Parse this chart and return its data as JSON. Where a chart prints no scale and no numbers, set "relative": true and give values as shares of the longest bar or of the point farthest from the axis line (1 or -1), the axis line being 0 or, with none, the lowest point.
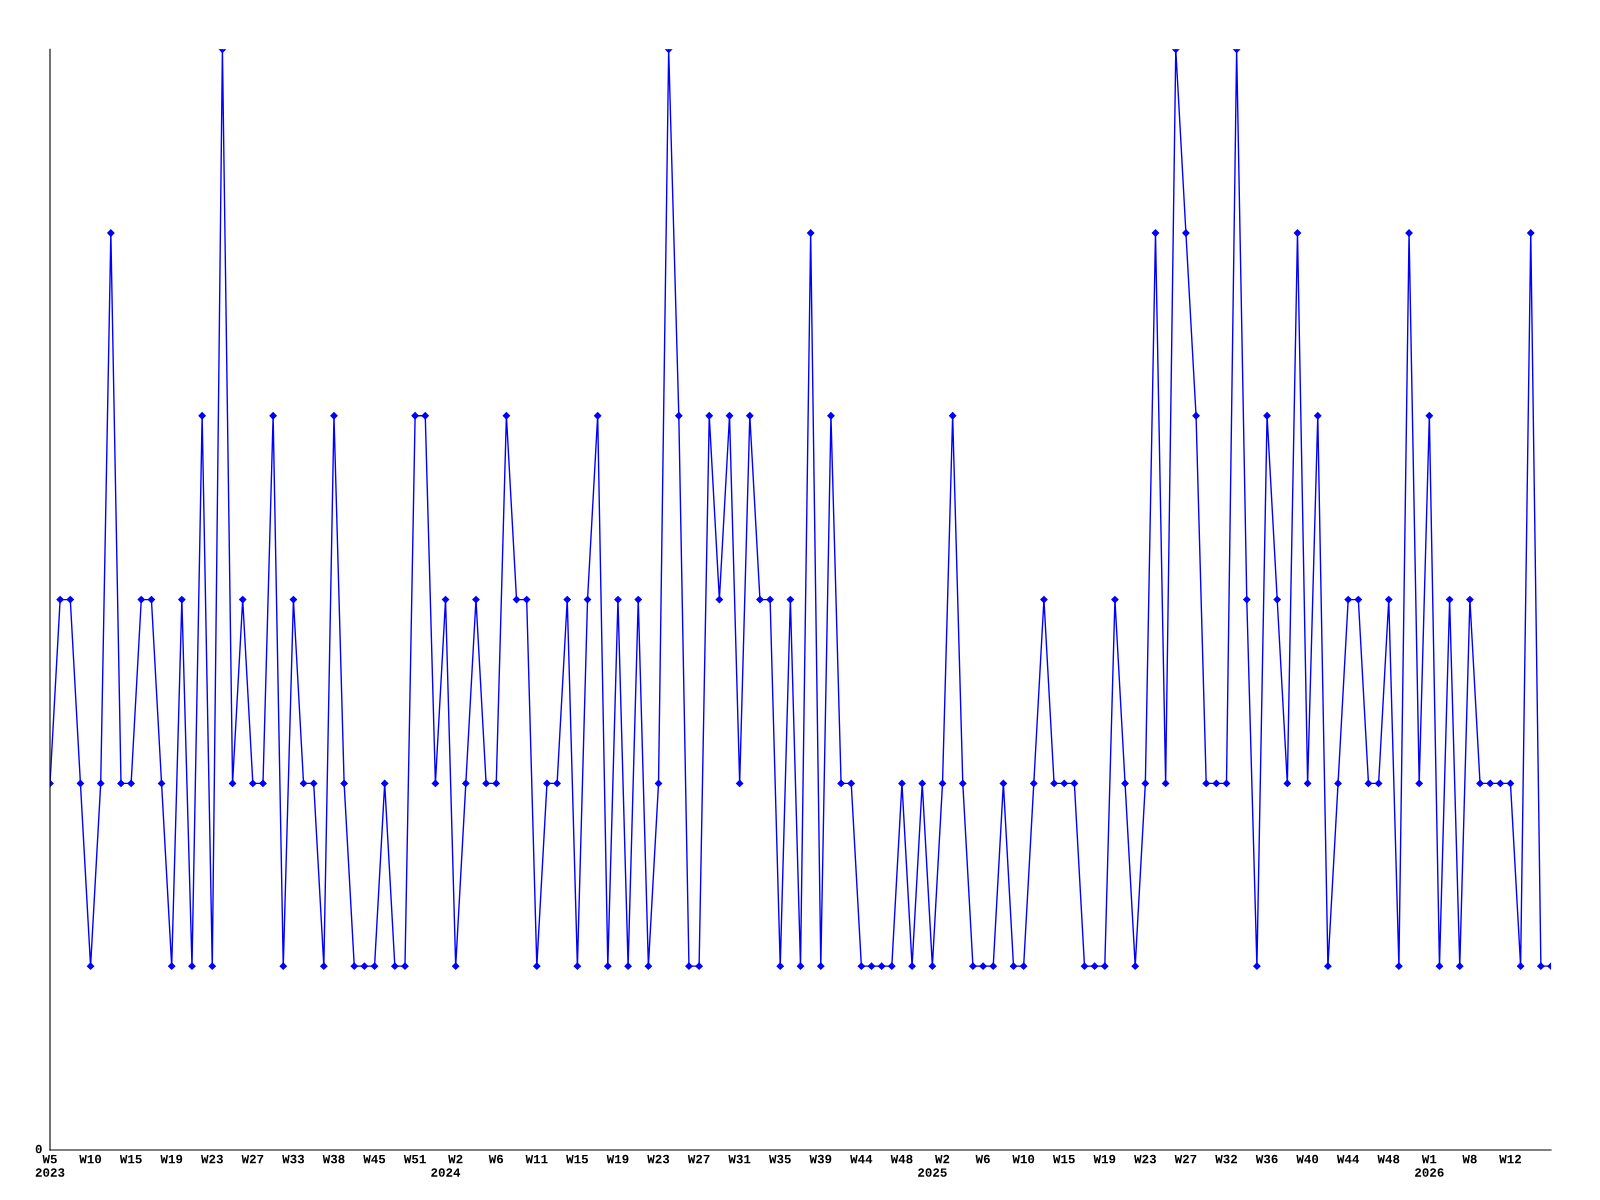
{
  "chart_data": {
    "type": "line",
    "relative": true,
    "marker": "diamond",
    "line_style": "solid",
    "grid": false,
    "legend": false,
    "categories": [
      "W5\n2023",
      null,
      null,
      null,
      "W10",
      null,
      null,
      null,
      "W15",
      null,
      null,
      null,
      "W19",
      null,
      null,
      null,
      "W23",
      null,
      null,
      null,
      "W27",
      null,
      null,
      null,
      "W33",
      null,
      null,
      null,
      "W38",
      null,
      null,
      null,
      "W45",
      null,
      null,
      null,
      "W51",
      null,
      null,
      "\n2024",
      "W2",
      null,
      null,
      null,
      "W6",
      null,
      null,
      null,
      "W11",
      null,
      null,
      null,
      "W15",
      null,
      null,
      null,
      "W19",
      null,
      null,
      null,
      "W23",
      null,
      null,
      null,
      "W27",
      null,
      null,
      null,
      "W31",
      null,
      null,
      null,
      "W35",
      null,
      null,
      null,
      "W39",
      null,
      null,
      null,
      "W44",
      null,
      null,
      null,
      "W48",
      null,
      null,
      "\n2025",
      "W2",
      null,
      null,
      null,
      "W6",
      null,
      null,
      null,
      "W10",
      null,
      null,
      null,
      "W15",
      null,
      null,
      null,
      "W19",
      null,
      null,
      null,
      "W23",
      null,
      null,
      null,
      "W27",
      null,
      null,
      null,
      "W32",
      null,
      null,
      null,
      "W36",
      null,
      null,
      null,
      "W40",
      null,
      null,
      null,
      "W44",
      null,
      null,
      null,
      "W48",
      null,
      null,
      null,
      "W1\n2026",
      null,
      null,
      null,
      "W8",
      null,
      null,
      null,
      "W12",
      null,
      null,
      null,
      null
    ],
    "series": [
      {
        "color": "#0000ff",
        "values": [
          0.333,
          0.5,
          0.5,
          0.333,
          0.167,
          0.333,
          0.833,
          0.333,
          0.333,
          0.5,
          0.5,
          0.333,
          0.167,
          0.5,
          0.167,
          0.667,
          0.167,
          1,
          0.333,
          0.5,
          0.333,
          0.333,
          0.667,
          0.167,
          0.5,
          0.333,
          0.333,
          0.167,
          0.667,
          0.333,
          0.167,
          0.167,
          0.167,
          0.333,
          0.167,
          0.167,
          0.667,
          0.667,
          0.333,
          0.5,
          0.167,
          0.333,
          0.5,
          0.333,
          0.333,
          0.667,
          0.5,
          0.5,
          0.167,
          0.333,
          0.333,
          0.5,
          0.167,
          0.5,
          0.667,
          0.167,
          0.5,
          0.167,
          0.5,
          0.167,
          0.333,
          1,
          0.667,
          0.167,
          0.167,
          0.667,
          0.5,
          0.667,
          0.333,
          0.667,
          0.5,
          0.5,
          0.167,
          0.5,
          0.167,
          0.833,
          0.167,
          0.667,
          0.333,
          0.333,
          0.167,
          0.167,
          0.167,
          0.167,
          0.333,
          0.167,
          0.333,
          0.167,
          0.333,
          0.667,
          0.333,
          0.167,
          0.167,
          0.167,
          0.333,
          0.167,
          0.167,
          0.333,
          0.5,
          0.333,
          0.333,
          0.333,
          0.167,
          0.167,
          0.167,
          0.5,
          0.333,
          0.167,
          0.333,
          0.833,
          0.333,
          1,
          0.833,
          0.667,
          0.333,
          0.333,
          0.333,
          1,
          0.5,
          0.167,
          0.667,
          0.5,
          0.333,
          0.833,
          0.333,
          0.667,
          0.167,
          0.333,
          0.5,
          0.5,
          0.333,
          0.333,
          0.5,
          0.167,
          0.833,
          0.333,
          0.667,
          0.167,
          0.5,
          0.167,
          0.5,
          0.333,
          0.333,
          0.333,
          0.333,
          0.167,
          0.833,
          0.167,
          0.167
        ]
      }
    ],
    "annotations": [
      "0"
    ]
  }
}
